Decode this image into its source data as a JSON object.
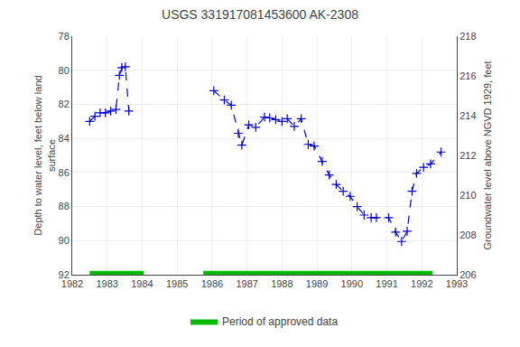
{
  "chart_data": {
    "type": "line",
    "title": "USGS 331917081453600 AK-2308",
    "y_label": "Depth to water level, feet below land\nsurface",
    "y2_label": "Groundwater level above NGVD 1929, feet",
    "x": [
      1982.5,
      1982.65,
      1982.8,
      1982.95,
      1983.1,
      1983.25,
      1983.35,
      1983.42,
      1983.52,
      1983.62,
      null,
      1986.05,
      1986.35,
      1986.55,
      1986.75,
      1986.85,
      1987.05,
      1987.25,
      1987.5,
      1987.65,
      1987.82,
      1988.0,
      1988.15,
      1988.35,
      1988.55,
      1988.75,
      1988.92,
      1989.15,
      1989.35,
      1989.55,
      1989.75,
      1989.95,
      1990.15,
      1990.35,
      1990.55,
      1990.7,
      1991.05,
      1991.25,
      1991.42,
      1991.58,
      1991.72,
      1991.85,
      1992.05,
      1992.25,
      1992.55
    ],
    "values": [
      83.0,
      82.7,
      82.5,
      82.5,
      82.4,
      82.3,
      80.3,
      79.85,
      79.8,
      82.4,
      null,
      81.2,
      81.75,
      82.05,
      83.7,
      84.4,
      83.2,
      83.35,
      82.75,
      82.8,
      82.9,
      83.0,
      82.85,
      83.3,
      82.85,
      84.35,
      84.45,
      85.35,
      86.15,
      86.7,
      87.1,
      87.4,
      88.0,
      88.5,
      88.65,
      88.65,
      88.65,
      89.5,
      90.05,
      89.45,
      87.1,
      86.05,
      85.7,
      85.5,
      84.8
    ],
    "color": "#0000cc",
    "marker": "plus",
    "line_style": "dashed",
    "xlim": [
      1982,
      1993
    ],
    "xticks": [
      1982,
      1983,
      1984,
      1985,
      1986,
      1987,
      1988,
      1989,
      1990,
      1991,
      1992,
      1993
    ],
    "ylim": [
      92,
      78
    ],
    "yticks": [
      78,
      80,
      82,
      84,
      86,
      88,
      90,
      92
    ],
    "y2lim": [
      206,
      218
    ],
    "y2ticks": [
      206,
      208,
      210,
      212,
      214,
      216,
      218
    ],
    "grid": true,
    "legend": "bottom",
    "approved_periods": {
      "name": "Period of approved data",
      "color": "#00bb00",
      "ranges": [
        [
          1982.5,
          1984.05
        ],
        [
          1985.75,
          1992.3
        ]
      ]
    }
  }
}
